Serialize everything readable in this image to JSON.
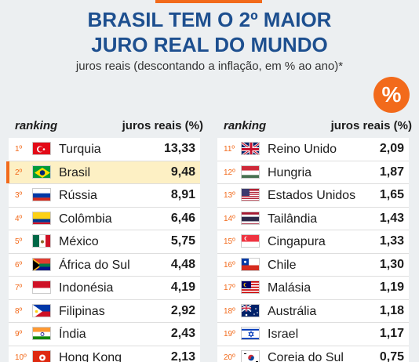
{
  "header": {
    "title_line1": "BRASIL TEM O 2º MAIOR",
    "title_line2": "JURO REAL DO MUNDO",
    "subtitle": "juros reais (descontando a inflação, em % ao ano)*",
    "badge": "%"
  },
  "table_headers": {
    "ranking": "ranking",
    "value": "juros reais (%)"
  },
  "colors": {
    "accent": "#f26a1b",
    "title": "#1d4f8f",
    "highlight": "#fdf0c4"
  },
  "chart_data": {
    "type": "table",
    "columns": [
      "ranking",
      "juros reais (%)"
    ],
    "rows": [
      {
        "rank": "1º",
        "country": "Turquia",
        "value": "13,33",
        "flag": "turkey-flag"
      },
      {
        "rank": "2º",
        "country": "Brasil",
        "value": "9,48",
        "flag": "brazil-flag",
        "highlight": true
      },
      {
        "rank": "3º",
        "country": "Rússia",
        "value": "8,91",
        "flag": "russia-flag"
      },
      {
        "rank": "4º",
        "country": "Colômbia",
        "value": "6,46",
        "flag": "colombia-flag"
      },
      {
        "rank": "5º",
        "country": "México",
        "value": "5,75",
        "flag": "mexico-flag"
      },
      {
        "rank": "6º",
        "country": "África do Sul",
        "value": "4,48",
        "flag": "south-africa-flag"
      },
      {
        "rank": "7º",
        "country": "Indonésia",
        "value": "4,19",
        "flag": "indonesia-flag"
      },
      {
        "rank": "8º",
        "country": "Filipinas",
        "value": "2,92",
        "flag": "philippines-flag"
      },
      {
        "rank": "9º",
        "country": "Índia",
        "value": "2,43",
        "flag": "india-flag"
      },
      {
        "rank": "10º",
        "country": "Hong Kong",
        "value": "2,13",
        "flag": "hong-kong-flag"
      },
      {
        "rank": "11º",
        "country": "Reino Unido",
        "value": "2,09",
        "flag": "uk-flag"
      },
      {
        "rank": "12º",
        "country": "Hungria",
        "value": "1,87",
        "flag": "hungary-flag"
      },
      {
        "rank": "13º",
        "country": "Estados Unidos",
        "value": "1,65",
        "flag": "usa-flag"
      },
      {
        "rank": "14º",
        "country": "Tailândia",
        "value": "1,43",
        "flag": "thailand-flag"
      },
      {
        "rank": "15º",
        "country": "Cingapura",
        "value": "1,33",
        "flag": "singapore-flag"
      },
      {
        "rank": "16º",
        "country": "Chile",
        "value": "1,30",
        "flag": "chile-flag"
      },
      {
        "rank": "17º",
        "country": "Malásia",
        "value": "1,19",
        "flag": "malaysia-flag"
      },
      {
        "rank": "18º",
        "country": "Austrália",
        "value": "1,18",
        "flag": "australia-flag"
      },
      {
        "rank": "19º",
        "country": "Israel",
        "value": "1,17",
        "flag": "israel-flag"
      },
      {
        "rank": "20º",
        "country": "Coreia do Sul",
        "value": "0,75",
        "flag": "south-korea-flag"
      }
    ]
  }
}
